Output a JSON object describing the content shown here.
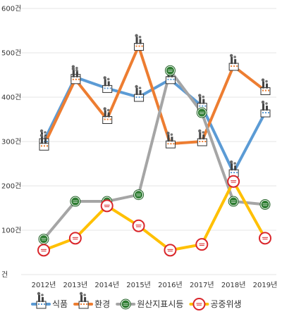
{
  "chart_data": {
    "type": "line",
    "title": "",
    "xlabel": "",
    "ylabel": "",
    "categories": [
      "2012년",
      "2013년",
      "2014년",
      "2015년",
      "2016년",
      "2017년",
      "2018년",
      "2019년"
    ],
    "y_ticks": [
      "건",
      "100건",
      "200건",
      "300건",
      "400건",
      "500건",
      "600건"
    ],
    "ylim": [
      0,
      600
    ],
    "grid": true,
    "legend_position": "bottom",
    "series": [
      {
        "name": "식품",
        "color": "#5b9bd5",
        "marker": "factory-icon",
        "values": [
          300,
          445,
          420,
          400,
          440,
          380,
          230,
          365
        ]
      },
      {
        "name": "환경",
        "color": "#ed7d31",
        "marker": "factory-icon",
        "values": [
          290,
          440,
          350,
          515,
          295,
          300,
          470,
          415
        ]
      },
      {
        "name": "원산지표시등",
        "color": "#a5a5a5",
        "marker": "green-badge-icon",
        "values": [
          80,
          165,
          165,
          180,
          460,
          365,
          165,
          158
        ]
      },
      {
        "name": "공중위생",
        "color": "#ffc000",
        "marker": "red-badge-icon",
        "values": [
          55,
          82,
          155,
          110,
          55,
          68,
          210,
          82
        ]
      }
    ]
  }
}
